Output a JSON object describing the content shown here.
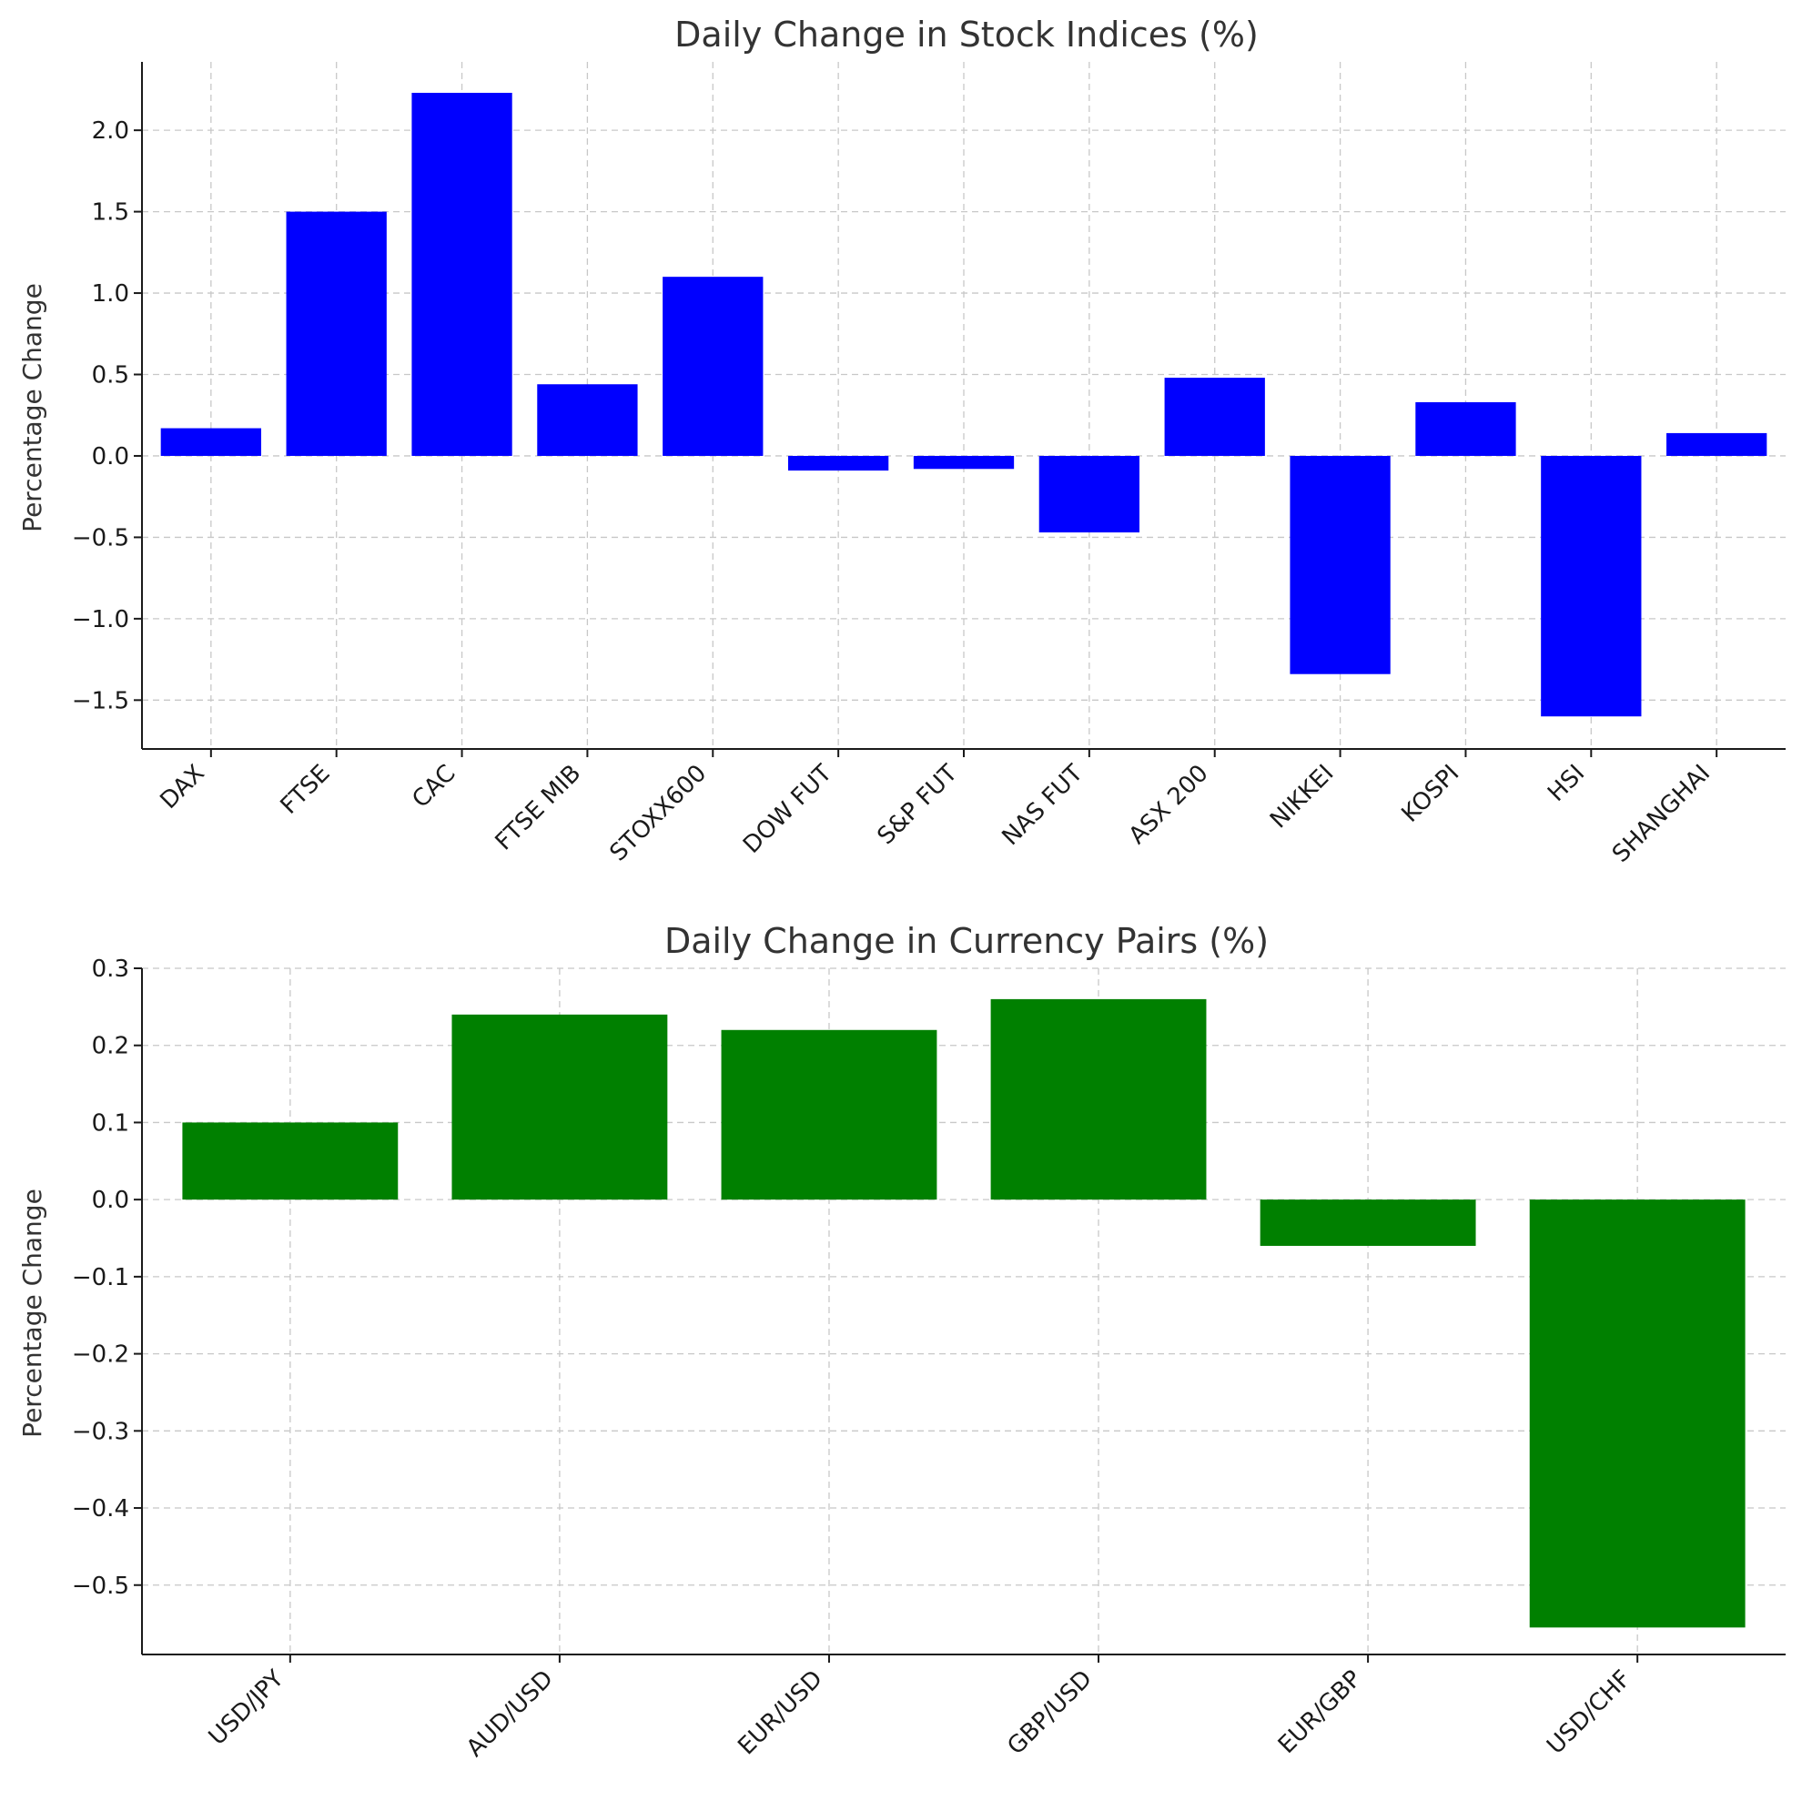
{
  "chart_data": [
    {
      "type": "bar",
      "title": "Daily Change in Stock Indices (%)",
      "xlabel": "",
      "ylabel": "Percentage Change",
      "ylim": [
        -1.8,
        2.42
      ],
      "yticks": [
        -1.5,
        -1.0,
        -0.5,
        0.0,
        0.5,
        1.0,
        1.5,
        2.0
      ],
      "ytick_labels": [
        "−1.5",
        "−1.0",
        "−0.5",
        "0.0",
        "0.5",
        "1.0",
        "1.5",
        "2.0"
      ],
      "grid": true,
      "color": "#0000ff",
      "categories": [
        "DAX",
        "FTSE",
        "CAC",
        "FTSE MIB",
        "STOXX600",
        "DOW FUT",
        "S&P FUT",
        "NAS FUT",
        "ASX 200",
        "NIKKEI",
        "KOSPI",
        "HSI",
        "SHANGHAI"
      ],
      "values": [
        0.17,
        1.5,
        2.23,
        0.44,
        1.1,
        -0.09,
        -0.08,
        -0.47,
        0.48,
        -1.34,
        0.33,
        -1.6,
        0.14
      ]
    },
    {
      "type": "bar",
      "title": "Daily Change in Currency Pairs (%)",
      "xlabel": "",
      "ylabel": "Percentage Change",
      "ylim": [
        -0.59,
        0.3
      ],
      "yticks": [
        -0.5,
        -0.4,
        -0.3,
        -0.2,
        -0.1,
        0.0,
        0.1,
        0.2,
        0.3
      ],
      "ytick_labels": [
        "−0.5",
        "−0.4",
        "−0.3",
        "−0.2",
        "−0.1",
        "0.0",
        "0.1",
        "0.2",
        "0.3"
      ],
      "grid": true,
      "color": "#008000",
      "categories": [
        "USD/JPY",
        "AUD/USD",
        "EUR/USD",
        "GBP/USD",
        "EUR/GBP",
        "USD/CHF"
      ],
      "values": [
        0.1,
        0.24,
        0.22,
        0.26,
        -0.06,
        -0.555
      ]
    }
  ]
}
